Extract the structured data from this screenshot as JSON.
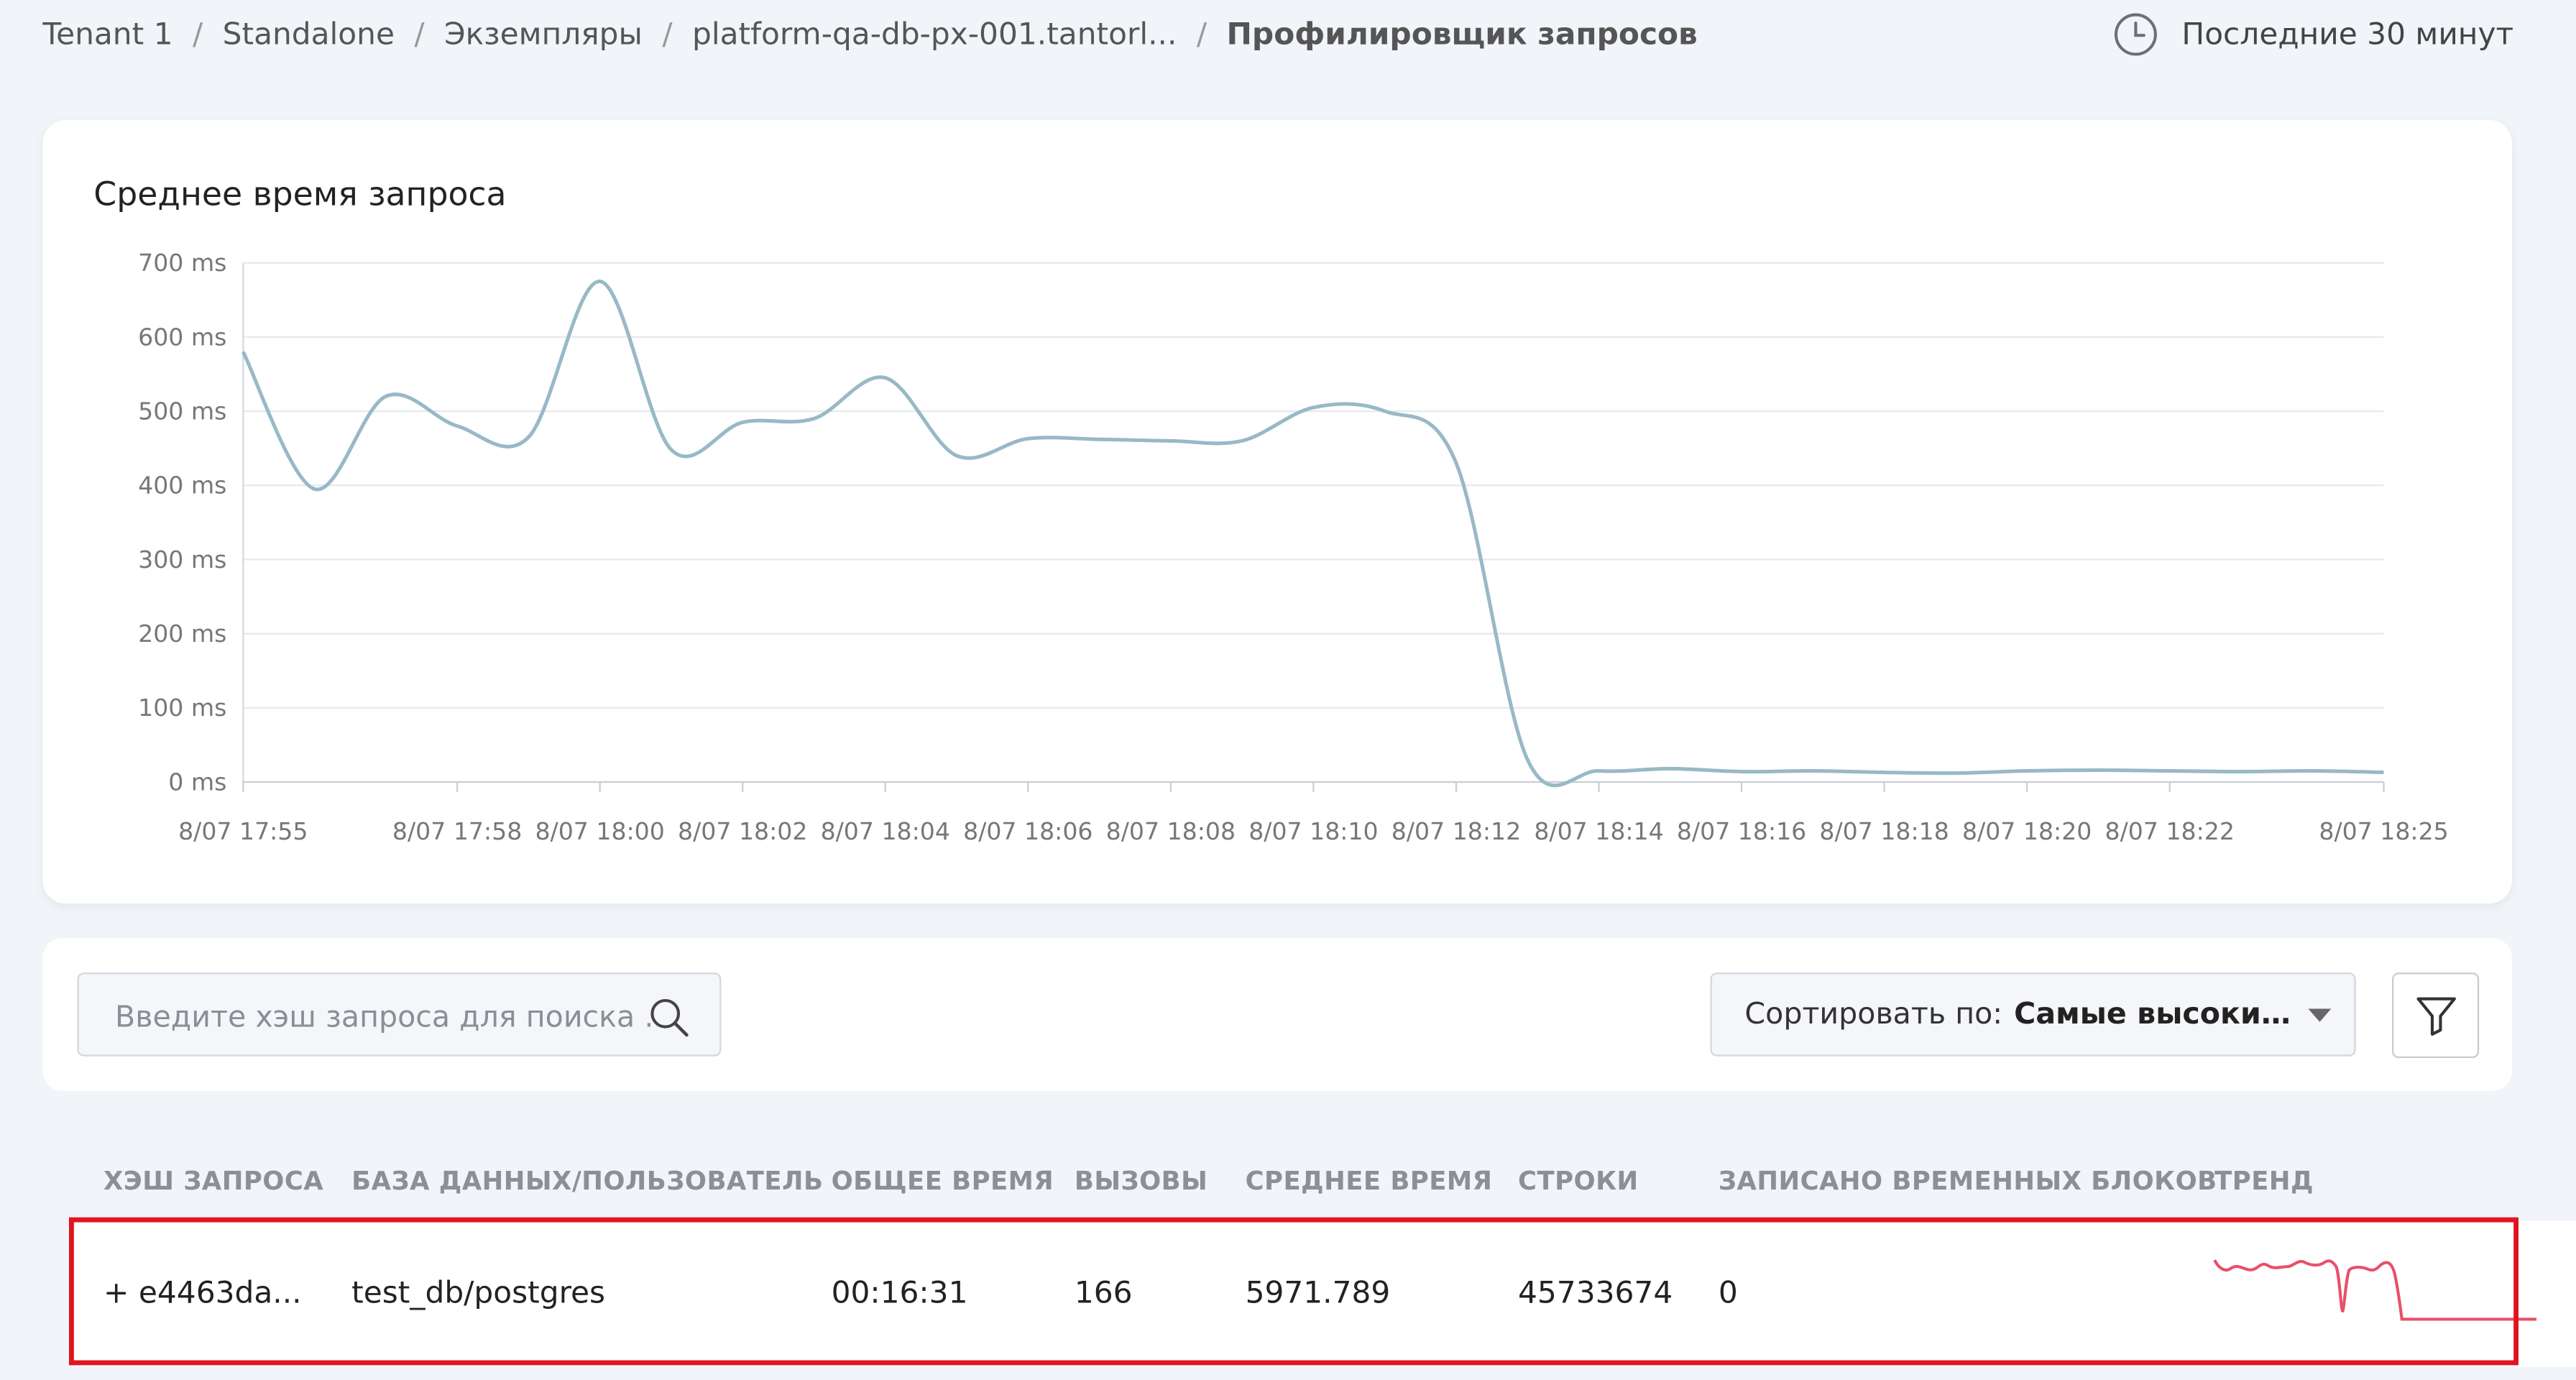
{
  "breadcrumb": {
    "items": [
      "Tenant 1",
      "Standalone",
      "Экземпляры",
      "platform-qa-db-px-001.tantorl..."
    ],
    "current": "Профилировщик запросов",
    "separator": "/"
  },
  "time_range": {
    "label": "Последние 30 минут",
    "icon": "clock-icon"
  },
  "chart": {
    "title": "Среднее время запроса"
  },
  "chart_data": {
    "type": "line",
    "title": "Среднее время запроса",
    "xlabel": "",
    "ylabel": "",
    "y_unit": "ms",
    "ylim": [
      0,
      700
    ],
    "yticks": [
      "0 ms",
      "100 ms",
      "200 ms",
      "300 ms",
      "400 ms",
      "500 ms",
      "600 ms",
      "700 ms"
    ],
    "xtick_labels": [
      "8/07 17:55",
      "8/07 17:58",
      "8/07 18:00",
      "8/07 18:02",
      "8/07 18:04",
      "8/07 18:06",
      "8/07 18:08",
      "8/07 18:10",
      "8/07 18:12",
      "8/07 18:14",
      "8/07 18:16",
      "8/07 18:18",
      "8/07 18:20",
      "8/07 18:22",
      "8/07 18:25"
    ],
    "grid": true,
    "legend": "none",
    "line_color": "#98b9c6",
    "series": [
      {
        "x": [
          "17:55",
          "17:56",
          "17:57",
          "17:58",
          "17:59",
          "18:00",
          "18:01",
          "18:02",
          "18:03",
          "18:04",
          "18:05",
          "18:06",
          "18:07",
          "18:08",
          "18:09",
          "18:10",
          "18:11",
          "18:12",
          "18:13",
          "18:14",
          "18:15",
          "18:16",
          "18:17",
          "18:18",
          "18:19",
          "18:20",
          "18:21",
          "18:22",
          "18:23",
          "18:24",
          "18:25"
        ],
        "values": [
          580,
          395,
          520,
          480,
          465,
          675,
          448,
          485,
          490,
          545,
          440,
          463,
          462,
          460,
          460,
          505,
          500,
          430,
          30,
          15,
          18,
          14,
          15,
          13,
          12,
          15,
          16,
          15,
          14,
          15,
          13
        ]
      }
    ]
  },
  "search": {
    "placeholder": "Введите хэш запроса для поиска ...",
    "value": ""
  },
  "sort": {
    "label": "Сортировать по:",
    "value": "Самые высокие ..."
  },
  "table": {
    "columns": [
      "ХЭШ ЗАПРОСА",
      "БАЗА ДАННЫХ/ПОЛЬЗОВАТЕЛЬ",
      "ОБЩЕЕ ВРЕМЯ",
      "ВЫЗОВЫ",
      "СРЕДНЕЕ ВРЕМЯ",
      "СТРОКИ",
      "ЗАПИСАНО ВРЕМЕННЫХ БЛОКОВ",
      "ТРЕНД"
    ],
    "rows": [
      {
        "hash": "+ e4463da...",
        "db_user": "test_db/postgres",
        "total_time": "00:16:31",
        "calls": "166",
        "avg_time": "5971.789",
        "rows": "45733674",
        "temp_blocks": "0",
        "trend_color": "#e8506a"
      }
    ]
  },
  "highlight_color": "#e0141e"
}
